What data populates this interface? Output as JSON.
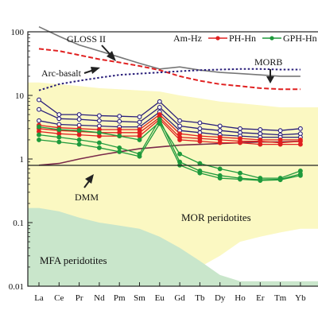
{
  "chart_data": {
    "type": "line",
    "xlabel": "",
    "ylabel": "",
    "yscale": "log",
    "ylim": [
      0.01,
      100
    ],
    "y_ticks": [
      "100",
      "10",
      "1",
      "0.1",
      "0.01"
    ],
    "y_tick_values": [
      100,
      10,
      1,
      0.1,
      0.01
    ],
    "categories": [
      "La",
      "Ce",
      "Pr",
      "Nd",
      "Pm",
      "Sm",
      "Eu",
      "Gd",
      "Tb",
      "Dy",
      "Ho",
      "Er",
      "Tm",
      "Yb"
    ],
    "legend": [
      {
        "name": "Am-Hz",
        "color": "#2a1f7a",
        "marker": "circle-open"
      },
      {
        "name": "PH-Hn",
        "color": "#e02020",
        "marker": "circle"
      },
      {
        "name": "GPH-Hn",
        "color": "#1f9a3c",
        "marker": "circle"
      }
    ],
    "reference_curves": [
      {
        "name": "GLOSS II",
        "color": "#777777",
        "style": "solid",
        "values": [
          120,
          85,
          62,
          50,
          40,
          32,
          26,
          28,
          25,
          23,
          22,
          21,
          20,
          20
        ]
      },
      {
        "name": "Arc-basalt",
        "color": "#e02020",
        "style": "dashed",
        "values": [
          54,
          50,
          43,
          37,
          33,
          29,
          25,
          20,
          17,
          15,
          14,
          13,
          12.5,
          12.5
        ]
      },
      {
        "name": "MORB",
        "color": "#2a1f7a",
        "style": "dotted",
        "values": [
          12,
          15,
          17,
          19,
          21,
          22,
          23,
          24,
          25,
          25.5,
          26,
          26,
          25.5,
          25.5
        ]
      },
      {
        "name": "DMM",
        "color": "#7a2a4a",
        "style": "solid",
        "values": [
          0.8,
          0.85,
          1.0,
          1.15,
          1.3,
          1.45,
          1.55,
          1.65,
          1.7,
          1.75,
          1.8,
          1.85,
          1.85,
          1.9
        ]
      }
    ],
    "series": [
      {
        "group": "Am-Hz",
        "values": [
          8.5,
          5.0,
          5.0,
          4.8,
          4.7,
          4.6,
          8.0,
          4.0,
          3.7,
          3.3,
          3.0,
          2.9,
          2.8,
          3.0
        ]
      },
      {
        "group": "Am-Hz",
        "values": [
          6.0,
          4.3,
          4.2,
          4.0,
          3.9,
          3.8,
          6.5,
          3.3,
          3.0,
          2.8,
          2.6,
          2.5,
          2.4,
          2.5
        ]
      },
      {
        "group": "Am-Hz",
        "values": [
          4.0,
          3.5,
          3.4,
          3.3,
          3.2,
          3.2,
          5.5,
          2.8,
          2.6,
          2.4,
          2.3,
          2.2,
          2.2,
          2.2
        ]
      },
      {
        "group": "PH-Hn",
        "values": [
          3.4,
          3.1,
          3.0,
          2.9,
          2.9,
          2.9,
          5.0,
          2.5,
          2.3,
          2.2,
          2.1,
          2.0,
          2.0,
          2.0
        ]
      },
      {
        "group": "PH-Hn",
        "values": [
          3.0,
          2.8,
          2.7,
          2.6,
          2.6,
          2.6,
          4.5,
          2.2,
          2.1,
          2.0,
          1.9,
          1.9,
          1.8,
          1.9
        ]
      },
      {
        "group": "PH-Hn",
        "values": [
          2.7,
          2.5,
          2.4,
          2.3,
          2.3,
          2.3,
          4.2,
          2.0,
          1.9,
          1.8,
          1.8,
          1.7,
          1.7,
          1.7
        ]
      },
      {
        "group": "GPH-Hn",
        "values": [
          3.2,
          2.9,
          2.8,
          2.6,
          2.3,
          2.0,
          3.8,
          1.2,
          0.85,
          0.7,
          0.6,
          0.5,
          0.5,
          0.65
        ]
      },
      {
        "group": "GPH-Hn",
        "values": [
          2.4,
          2.2,
          2.0,
          1.8,
          1.5,
          1.2,
          4.2,
          0.9,
          0.65,
          0.55,
          0.5,
          0.47,
          0.48,
          0.58
        ]
      },
      {
        "group": "GPH-Hn",
        "values": [
          2.0,
          1.85,
          1.7,
          1.5,
          1.3,
          1.1,
          3.6,
          0.8,
          0.6,
          0.5,
          0.48,
          0.46,
          0.47,
          0.55
        ]
      }
    ],
    "fields": [
      {
        "name": "MOR peridotites",
        "color": "#fbf8c2"
      },
      {
        "name": "MFA peridotites",
        "color": "#c9e6cb"
      }
    ],
    "annotations": [
      "GLOSS II",
      "Arc-basalt",
      "MORB",
      "DMM",
      "MOR peridotites",
      "MFA peridotites"
    ],
    "grid": false,
    "legend_position": "top-right"
  }
}
